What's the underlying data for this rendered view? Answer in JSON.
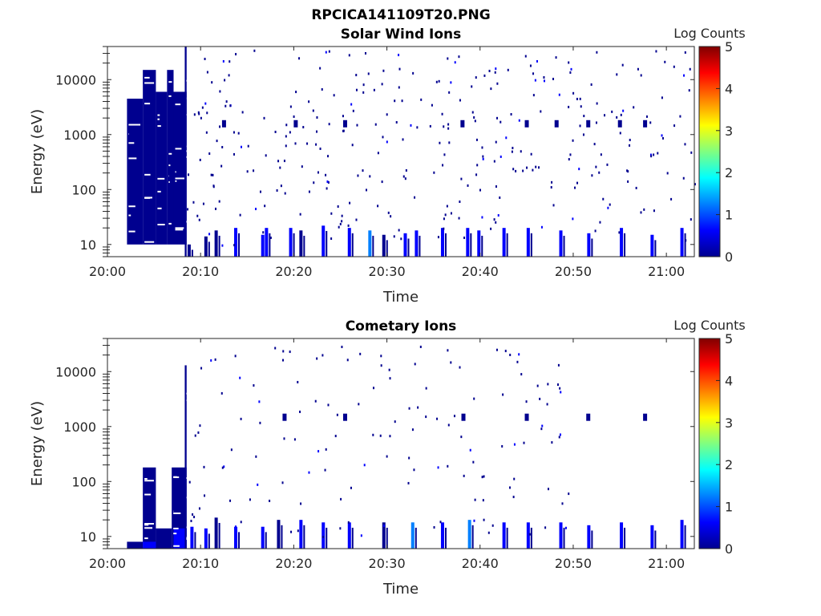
{
  "figure": {
    "title": "RPCICA141109T20.PNG"
  },
  "colormap": [
    "#00008f",
    "#0000ff",
    "#0080ff",
    "#00ffff",
    "#80ff80",
    "#ffff00",
    "#ff8000",
    "#ff0000",
    "#800000"
  ],
  "chart_data": [
    {
      "type": "heatmap",
      "title": "Solar Wind Ions",
      "xlabel": "Time",
      "ylabel": "Energy (eV)",
      "x_ticks": [
        "20:00",
        "20:10",
        "20:20",
        "20:30",
        "20:40",
        "20:50",
        "21:00"
      ],
      "x_range_minutes": [
        0,
        63
      ],
      "y_ticks": [
        "10",
        "100",
        "1000",
        "10000"
      ],
      "y_range_eV": [
        6,
        40000
      ],
      "y_scale": "log",
      "colorbar": {
        "label": "Log Counts",
        "ticks": [
          "0",
          "1",
          "2",
          "3",
          "4",
          "5"
        ],
        "range": [
          0,
          5
        ]
      },
      "dense_blocks": [
        {
          "t0": 2.1,
          "t1": 3.8,
          "e0": 10,
          "e1": 4500,
          "logc": 0.2
        },
        {
          "t0": 3.8,
          "t1": 5.2,
          "e0": 10,
          "e1": 15000,
          "logc": 0.2
        },
        {
          "t0": 5.2,
          "t1": 6.4,
          "e0": 10,
          "e1": 6000,
          "logc": 0.2
        },
        {
          "t0": 6.4,
          "t1": 7.1,
          "e0": 10,
          "e1": 15000,
          "logc": 0.2
        },
        {
          "t0": 7.1,
          "t1": 8.5,
          "e0": 10,
          "e1": 6000,
          "logc": 0.2
        },
        {
          "t0": 8.3,
          "t1": 8.5,
          "e0": 6,
          "e1": 40000,
          "logc": 0.2
        }
      ],
      "pulses": [
        {
          "t": 8.6,
          "e1": 10,
          "logc": 0.3
        },
        {
          "t": 10.4,
          "e1": 14,
          "logc": 0.3
        },
        {
          "t": 11.5,
          "e1": 18,
          "logc": 0.3
        },
        {
          "t": 13.6,
          "e1": 20,
          "logc": 0.4
        },
        {
          "t": 16.5,
          "e1": 15,
          "logc": 0.5
        },
        {
          "t": 16.9,
          "e1": 20,
          "logc": 0.8
        },
        {
          "t": 19.5,
          "e1": 20,
          "logc": 0.4
        },
        {
          "t": 20.6,
          "e1": 18,
          "logc": 0.3
        },
        {
          "t": 23.0,
          "e1": 22,
          "logc": 0.8
        },
        {
          "t": 25.8,
          "e1": 20,
          "logc": 0.6
        },
        {
          "t": 28.0,
          "e1": 18,
          "logc": 1.2
        },
        {
          "t": 29.5,
          "e1": 15,
          "logc": 0.3
        },
        {
          "t": 31.8,
          "e1": 16,
          "logc": 0.4
        },
        {
          "t": 33.0,
          "e1": 18,
          "logc": 0.6
        },
        {
          "t": 35.8,
          "e1": 20,
          "logc": 0.8
        },
        {
          "t": 38.5,
          "e1": 20,
          "logc": 0.7
        },
        {
          "t": 39.7,
          "e1": 18,
          "logc": 0.7
        },
        {
          "t": 42.4,
          "e1": 20,
          "logc": 0.5
        },
        {
          "t": 45.0,
          "e1": 20,
          "logc": 0.7
        },
        {
          "t": 48.5,
          "e1": 18,
          "logc": 0.6
        },
        {
          "t": 51.5,
          "e1": 16,
          "logc": 0.4
        },
        {
          "t": 55.0,
          "e1": 20,
          "logc": 0.6
        },
        {
          "t": 58.3,
          "e1": 15,
          "logc": 0.4
        },
        {
          "t": 61.5,
          "e1": 20,
          "logc": 0.5
        }
      ],
      "clusters": [
        {
          "t": 12.3,
          "e": 1600
        },
        {
          "t": 20.0,
          "e": 1600
        },
        {
          "t": 25.3,
          "e": 1600
        },
        {
          "t": 37.9,
          "e": 1600
        },
        {
          "t": 44.8,
          "e": 1600
        },
        {
          "t": 48.0,
          "e": 1600
        },
        {
          "t": 51.4,
          "e": 1600
        },
        {
          "t": 54.8,
          "e": 1600
        },
        {
          "t": 57.5,
          "e": 1600
        }
      ],
      "scatter_seed": 11,
      "scatter_count": 330,
      "scatter_time_range": [
        8.5,
        63
      ]
    },
    {
      "type": "heatmap",
      "title": "Cometary Ions",
      "xlabel": "Time",
      "ylabel": "Energy (eV)",
      "x_ticks": [
        "20:00",
        "20:10",
        "20:20",
        "20:30",
        "20:40",
        "20:50",
        "21:00"
      ],
      "x_range_minutes": [
        0,
        63
      ],
      "y_ticks": [
        "10",
        "100",
        "1000",
        "10000"
      ],
      "y_range_eV": [
        6,
        40000
      ],
      "y_scale": "log",
      "colorbar": {
        "label": "Log Counts",
        "ticks": [
          "0",
          "1",
          "2",
          "3",
          "4",
          "5"
        ],
        "range": [
          0,
          5
        ]
      },
      "dense_blocks": [
        {
          "t0": 2.1,
          "t1": 3.8,
          "e0": 6,
          "e1": 8,
          "logc": 0.2
        },
        {
          "t0": 3.8,
          "t1": 5.2,
          "e0": 6,
          "e1": 180,
          "logc": 0.2
        },
        {
          "t0": 5.2,
          "t1": 6.9,
          "e0": 6,
          "e1": 14,
          "logc": 0.2
        },
        {
          "t0": 6.9,
          "t1": 8.5,
          "e0": 6,
          "e1": 180,
          "logc": 0.2
        },
        {
          "t0": 3.8,
          "t1": 5.2,
          "e0": 6,
          "e1": 8,
          "logc": 0.8
        },
        {
          "t0": 7.1,
          "t1": 8.5,
          "e0": 6,
          "e1": 14,
          "logc": 0.7
        },
        {
          "t0": 8.3,
          "t1": 8.5,
          "e0": 6,
          "e1": 13000,
          "logc": 0.2
        }
      ],
      "pulses": [
        {
          "t": 8.9,
          "e1": 15,
          "logc": 0.4
        },
        {
          "t": 10.4,
          "e1": 14,
          "logc": 0.4
        },
        {
          "t": 11.5,
          "e1": 22,
          "logc": 0.3
        },
        {
          "t": 13.6,
          "e1": 15,
          "logc": 0.6
        },
        {
          "t": 16.5,
          "e1": 15,
          "logc": 0.4
        },
        {
          "t": 18.2,
          "e1": 20,
          "logc": 0.3
        },
        {
          "t": 20.6,
          "e1": 20,
          "logc": 0.8
        },
        {
          "t": 23.0,
          "e1": 18,
          "logc": 0.5
        },
        {
          "t": 25.8,
          "e1": 18,
          "logc": 0.9
        },
        {
          "t": 29.5,
          "e1": 18,
          "logc": 0.3
        },
        {
          "t": 32.6,
          "e1": 18,
          "logc": 1.0
        },
        {
          "t": 35.8,
          "e1": 18,
          "logc": 0.6
        },
        {
          "t": 38.7,
          "e1": 20,
          "logc": 1.3
        },
        {
          "t": 42.4,
          "e1": 18,
          "logc": 0.5
        },
        {
          "t": 45.0,
          "e1": 18,
          "logc": 0.8
        },
        {
          "t": 48.5,
          "e1": 18,
          "logc": 0.6
        },
        {
          "t": 51.5,
          "e1": 16,
          "logc": 0.6
        },
        {
          "t": 55.0,
          "e1": 18,
          "logc": 0.6
        },
        {
          "t": 58.3,
          "e1": 16,
          "logc": 0.5
        },
        {
          "t": 61.5,
          "e1": 20,
          "logc": 0.5
        }
      ],
      "clusters": [
        {
          "t": 18.8,
          "e": 1500
        },
        {
          "t": 25.3,
          "e": 1500
        },
        {
          "t": 38.0,
          "e": 1500
        },
        {
          "t": 44.8,
          "e": 1500
        },
        {
          "t": 51.4,
          "e": 1500
        },
        {
          "t": 57.5,
          "e": 1500
        }
      ],
      "scatter_seed": 29,
      "scatter_count": 140,
      "scatter_time_range": [
        8.5,
        50
      ]
    }
  ]
}
